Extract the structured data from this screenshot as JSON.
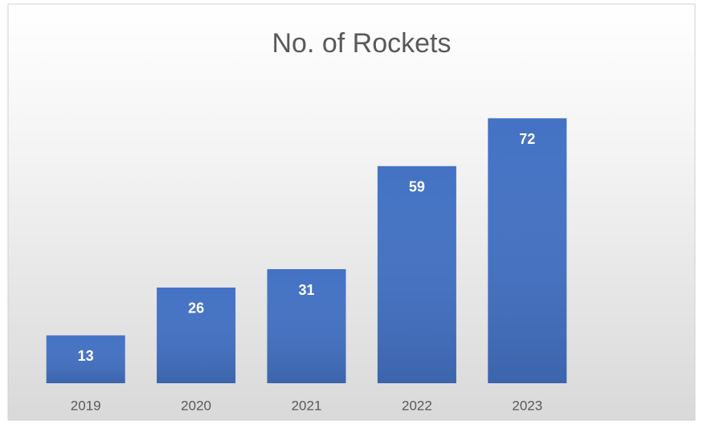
{
  "chart_data": {
    "type": "bar",
    "title": "No. of Rockets",
    "categories": [
      "2019",
      "2020",
      "2021",
      "2022",
      "2023"
    ],
    "values": [
      13,
      26,
      31,
      59,
      72
    ],
    "color": "#4472c4"
  }
}
